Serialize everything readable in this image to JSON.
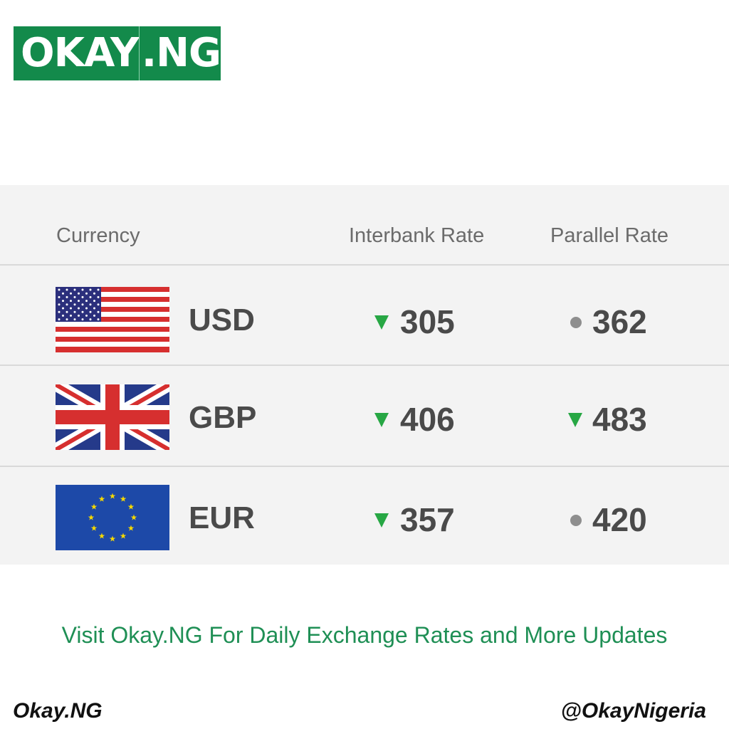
{
  "logo": {
    "text_left": "OKAY",
    "text_right": ".NG",
    "color": "#138a4b"
  },
  "table": {
    "headers": {
      "currency": "Currency",
      "interbank": "Interbank Rate",
      "parallel": "Parallel Rate"
    },
    "rows": [
      {
        "code": "USD",
        "flag": "us-flag-icon",
        "interbank": {
          "value": "305",
          "trend": "down"
        },
        "parallel": {
          "value": "362",
          "trend": "unchanged"
        }
      },
      {
        "code": "GBP",
        "flag": "uk-flag-icon",
        "interbank": {
          "value": "406",
          "trend": "down"
        },
        "parallel": {
          "value": "483",
          "trend": "down"
        }
      },
      {
        "code": "EUR",
        "flag": "eu-flag-icon",
        "interbank": {
          "value": "357",
          "trend": "down"
        },
        "parallel": {
          "value": "420",
          "trend": "unchanged"
        }
      }
    ],
    "colors": {
      "down": "#27a744",
      "unchanged": "#8e8e8e"
    }
  },
  "footer": {
    "tagline": "Visit Okay.NG For Daily Exchange Rates and More Updates",
    "site": "Okay.NG",
    "handle": "@OkayNigeria"
  }
}
